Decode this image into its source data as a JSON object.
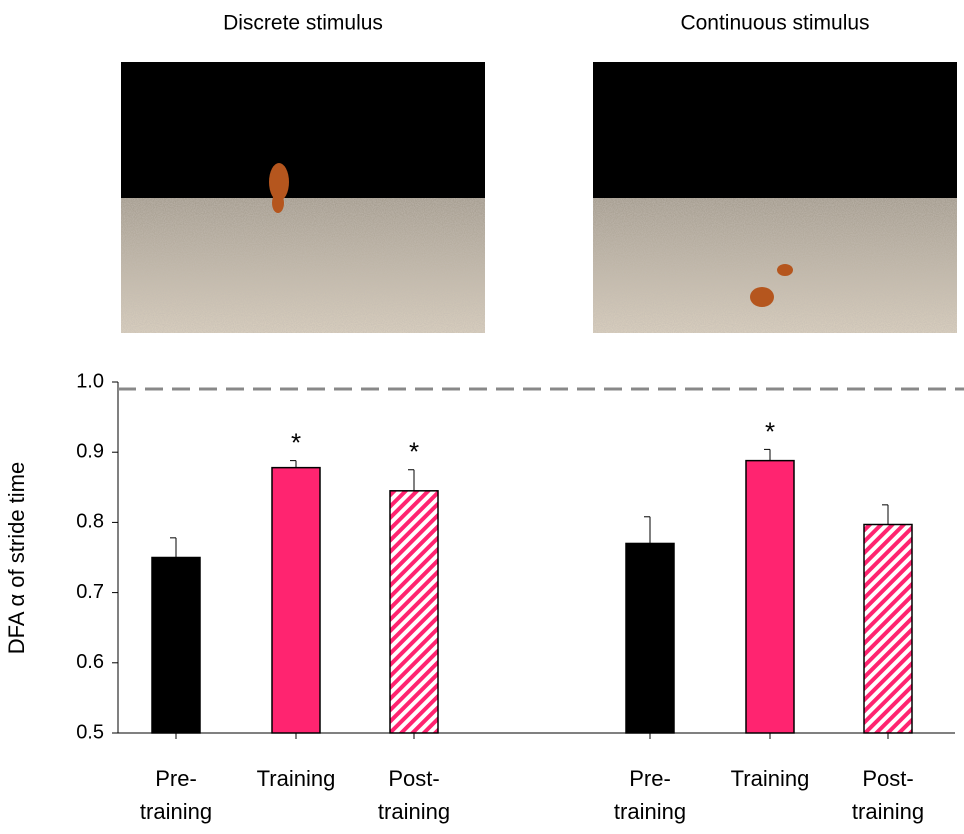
{
  "chart_data": {
    "type": "bar",
    "ylabel": "DFA α of stride time",
    "ylim": [
      0.5,
      1.0
    ],
    "yticks": [
      {
        "value": 1.0,
        "label": "1.0"
      },
      0.9,
      0.8,
      0.7,
      0.6,
      0.5
    ],
    "reference_line": 0.99,
    "bar_styles": [
      {
        "color": "#000000"
      },
      {
        "color": "#ff2470"
      },
      {
        "color": "#ff2470",
        "hatch": true
      }
    ],
    "groups": [
      {
        "title": "Discrete stimulus",
        "categories": [
          [
            "Pre-",
            "training"
          ],
          [
            "Training"
          ],
          [
            "Post-",
            "training"
          ]
        ],
        "values": [
          0.75,
          0.878,
          0.845
        ],
        "errors": [
          0.028,
          0.01,
          0.03
        ],
        "annotations": [
          null,
          "*",
          "*"
        ]
      },
      {
        "title": "Continuous stimulus",
        "categories": [
          [
            "Pre-",
            "training"
          ],
          [
            "Training"
          ],
          [
            "Post-",
            "training"
          ]
        ],
        "values": [
          0.77,
          0.888,
          0.797
        ],
        "errors": [
          0.038,
          0.016,
          0.028
        ],
        "annotations": [
          null,
          "*",
          null
        ]
      }
    ]
  }
}
